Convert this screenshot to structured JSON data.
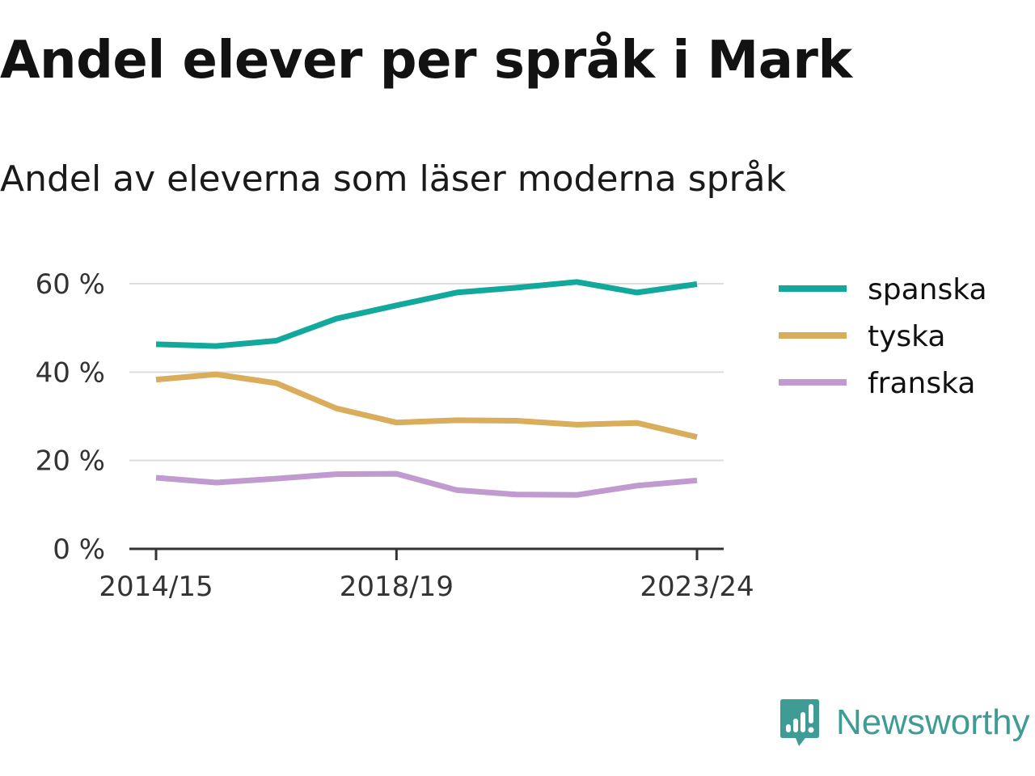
{
  "title": "Andel elever per språk i Mark",
  "subtitle": "Andel av eleverna som läser moderna språk",
  "brand": {
    "name": "Newsworthy",
    "icon": "newsworthy-logo-icon",
    "color": "#3e9c94"
  },
  "chart_data": {
    "type": "line",
    "x": [
      "2014/15",
      "2015/16",
      "2016/17",
      "2017/18",
      "2018/19",
      "2019/20",
      "2020/21",
      "2021/22",
      "2022/23",
      "2023/24"
    ],
    "x_tick_labels": [
      "2014/15",
      "2018/19",
      "2023/24"
    ],
    "y_ticks": [
      0,
      20,
      40,
      60
    ],
    "y_tick_labels": [
      "0 %",
      "20 %",
      "40 %",
      "60 %"
    ],
    "ylim": [
      0,
      60
    ],
    "grid": true,
    "legend_position": "right",
    "series": [
      {
        "name": "spanska",
        "color": "#12a89b",
        "values": [
          46.3,
          45.9,
          47.1,
          52.1,
          55.1,
          58.0,
          59.1,
          60.4,
          58.0,
          59.9
        ]
      },
      {
        "name": "tyska",
        "color": "#d9ad5b",
        "values": [
          38.3,
          39.5,
          37.5,
          31.8,
          28.6,
          29.1,
          29.0,
          28.1,
          28.5,
          25.3
        ]
      },
      {
        "name": "franska",
        "color": "#c19bd0",
        "values": [
          16.1,
          15.0,
          15.9,
          16.9,
          17.0,
          13.3,
          12.3,
          12.2,
          14.3,
          15.5
        ]
      }
    ]
  }
}
